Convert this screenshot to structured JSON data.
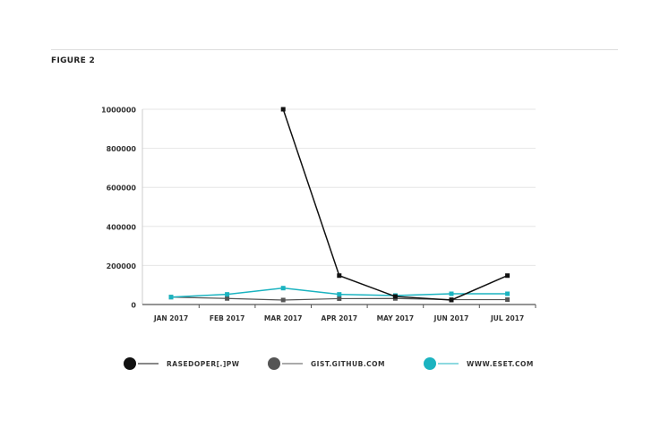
{
  "figure_label": "FIGURE 2",
  "chart_data": {
    "type": "line",
    "title": "",
    "xlabel": "",
    "ylabel": "",
    "categories": [
      "JAN 2017",
      "FEB 2017",
      "MAR 2017",
      "APR 2017",
      "MAY 2017",
      "JUN 2017",
      "JUL 2017"
    ],
    "ylim": [
      0,
      1000000
    ],
    "yticks": [
      "0",
      "200000",
      "400000",
      "600000",
      "800000",
      "1000000"
    ],
    "grid": true,
    "legend_position": "bottom",
    "series": [
      {
        "name": "RASEDOPER[.]PW",
        "color": "#111111",
        "values": [
          null,
          null,
          1000000,
          148000,
          41000,
          23000,
          148000
        ]
      },
      {
        "name": "GIST.GITHUB.COM",
        "color": "#555555",
        "values": [
          38000,
          31000,
          23000,
          30000,
          31000,
          25000,
          25000
        ]
      },
      {
        "name": "WWW.ESET.COM",
        "color": "#1bb3c0",
        "values": [
          38000,
          52000,
          84000,
          52000,
          46000,
          55000,
          55000
        ]
      }
    ]
  }
}
